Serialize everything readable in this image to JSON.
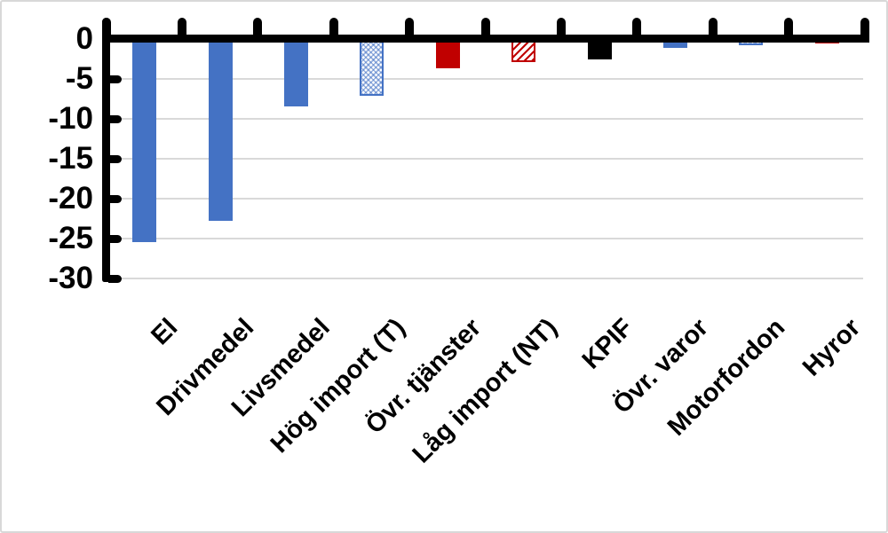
{
  "chart_data": {
    "type": "bar",
    "title": "",
    "xlabel": "",
    "ylabel": "",
    "categories": [
      "El",
      "Drivmedel",
      "Livsmedel",
      "Hög import (T)",
      "Övr. tjänster",
      "Låg import (NT)",
      "KPIF",
      "Övr. varor",
      "Motorfordon",
      "Hyror"
    ],
    "values": [
      -25.4,
      -22.8,
      -8.4,
      -7.1,
      -3.7,
      -2.9,
      -2.5,
      -1.1,
      -0.8,
      -0.6
    ],
    "bar_styles": [
      "solid-blue",
      "solid-blue",
      "solid-blue",
      "hatch-blue",
      "solid-red",
      "hatch-red",
      "solid-black",
      "solid-blue",
      "hatch-blue",
      "solid-red"
    ],
    "ylim": [
      -30,
      0
    ],
    "yticks": [
      0,
      -5,
      -10,
      -15,
      -20,
      -25,
      -30
    ],
    "ytick_labels": [
      "0",
      "-5",
      "-10",
      "-15",
      "-20",
      "-25",
      "-30"
    ],
    "grid": true,
    "legend": false,
    "x_labels_rotation_deg": 45,
    "colors": {
      "solid_blue": "#4472C4",
      "solid_red": "#C00000",
      "solid_black": "#000000",
      "gridline": "#D9D9D9",
      "axis": "#000000",
      "background": "#FFFFFF"
    }
  }
}
